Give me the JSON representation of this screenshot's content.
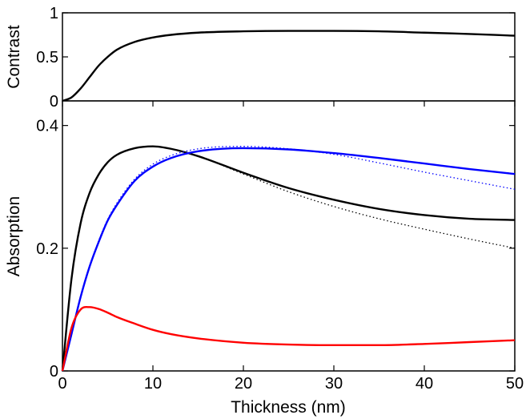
{
  "chart_data": [
    {
      "type": "line",
      "ylabel": "Contrast",
      "xlim": [
        0,
        50
      ],
      "ylim": [
        0,
        1
      ],
      "yticks": [
        0,
        0.5,
        1
      ],
      "ytick_labels": [
        "0",
        "0.5",
        "1"
      ],
      "grid": false,
      "series": [
        {
          "color": "#000000",
          "style": "solid",
          "x": [
            0,
            1,
            2,
            3,
            4,
            5,
            6,
            8,
            10,
            12,
            15,
            20,
            25,
            30,
            35,
            40,
            45,
            50
          ],
          "y": [
            0,
            0.04,
            0.14,
            0.27,
            0.4,
            0.5,
            0.58,
            0.67,
            0.72,
            0.75,
            0.775,
            0.79,
            0.795,
            0.795,
            0.79,
            0.775,
            0.76,
            0.74
          ]
        }
      ]
    },
    {
      "type": "line",
      "xlabel": "Thickness (nm)",
      "ylabel": "Absorption",
      "xlim": [
        0,
        50
      ],
      "ylim": [
        0,
        0.44
      ],
      "xticks": [
        0,
        10,
        20,
        30,
        40,
        50
      ],
      "xtick_labels": [
        "0",
        "10",
        "20",
        "30",
        "40",
        "50"
      ],
      "yticks": [
        0,
        0.2,
        0.4
      ],
      "ytick_labels": [
        "0",
        "0.2",
        "0.4"
      ],
      "grid": false,
      "series": [
        {
          "color": "#000000",
          "style": "solid",
          "x": [
            0,
            1,
            2,
            3,
            4,
            5,
            6,
            8,
            10,
            12,
            15,
            20,
            25,
            30,
            35,
            40,
            45,
            50
          ],
          "y": [
            0,
            0.15,
            0.24,
            0.29,
            0.32,
            0.34,
            0.352,
            0.363,
            0.366,
            0.362,
            0.35,
            0.323,
            0.298,
            0.279,
            0.264,
            0.254,
            0.248,
            0.246
          ]
        },
        {
          "color": "#000000",
          "style": "dotted",
          "x": [
            0,
            1,
            2,
            3,
            4,
            5,
            6,
            8,
            10,
            12,
            15,
            20,
            25,
            30,
            35,
            40,
            45,
            50
          ],
          "y": [
            0,
            0.15,
            0.24,
            0.29,
            0.32,
            0.34,
            0.352,
            0.363,
            0.366,
            0.362,
            0.35,
            0.321,
            0.292,
            0.268,
            0.248,
            0.231,
            0.215,
            0.2
          ]
        },
        {
          "color": "#0000ff",
          "style": "solid",
          "x": [
            0,
            1,
            2,
            3,
            4,
            5,
            6,
            8,
            10,
            12,
            15,
            20,
            25,
            30,
            35,
            40,
            45,
            50
          ],
          "y": [
            0,
            0.06,
            0.12,
            0.17,
            0.21,
            0.245,
            0.27,
            0.31,
            0.333,
            0.347,
            0.358,
            0.363,
            0.361,
            0.355,
            0.347,
            0.338,
            0.329,
            0.321
          ]
        },
        {
          "color": "#0000ff",
          "style": "dotted",
          "x": [
            0,
            1,
            2,
            3,
            4,
            5,
            6,
            8,
            10,
            12,
            15,
            20,
            25,
            30,
            35,
            40,
            45,
            50
          ],
          "y": [
            0,
            0.06,
            0.12,
            0.17,
            0.212,
            0.247,
            0.273,
            0.313,
            0.337,
            0.351,
            0.362,
            0.366,
            0.362,
            0.353,
            0.339,
            0.324,
            0.31,
            0.296
          ]
        },
        {
          "color": "#ff0000",
          "style": "solid",
          "x": [
            0,
            1,
            2,
            3,
            4,
            5,
            6,
            8,
            10,
            12,
            15,
            20,
            25,
            30,
            35,
            40,
            45,
            50
          ],
          "y": [
            0,
            0.07,
            0.1,
            0.104,
            0.101,
            0.095,
            0.088,
            0.077,
            0.067,
            0.06,
            0.053,
            0.046,
            0.043,
            0.042,
            0.042,
            0.044,
            0.047,
            0.05
          ]
        }
      ]
    }
  ]
}
